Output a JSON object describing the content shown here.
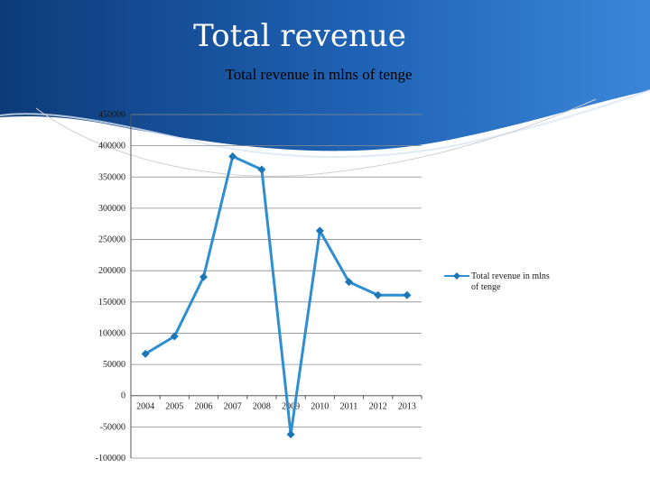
{
  "slide": {
    "title": "Total revenue",
    "colors": {
      "background_gradient": [
        "#0d3b7a",
        "#1f62b4",
        "#3b86d9"
      ],
      "line": "#2f8ed1",
      "marker": "#1c77b8",
      "grid": "#8c8c8c",
      "axis": "#555555"
    }
  },
  "chart_data": {
    "type": "line",
    "title": "Total revenue in mlns of tenge",
    "xlabel": "",
    "ylabel": "",
    "ylim": [
      -100000,
      450000
    ],
    "yticks": [
      -100000,
      -50000,
      0,
      50000,
      100000,
      150000,
      200000,
      250000,
      300000,
      350000,
      400000,
      450000
    ],
    "grid": true,
    "legend_position": "right",
    "categories": [
      "2004",
      "2005",
      "2006",
      "2007",
      "2008",
      "2009",
      "2010",
      "2011",
      "2012",
      "2013"
    ],
    "series": [
      {
        "name": "Total revenue in mlns of tenge",
        "values": [
          67000,
          95000,
          190000,
          383000,
          362000,
          -62000,
          264000,
          182000,
          161000,
          161000
        ]
      }
    ]
  }
}
